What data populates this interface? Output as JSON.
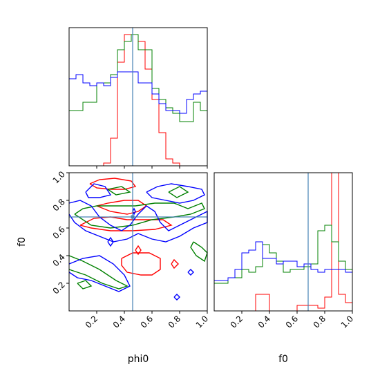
{
  "chart_data": {
    "type": "corner",
    "parameters": [
      "phi0",
      "f0"
    ],
    "truths": {
      "phi0": 0.46,
      "f0": 0.68
    },
    "truth_color": "#4682b4",
    "series_colors": {
      "red": "#ff0000",
      "green": "#008000",
      "blue": "#0000ff"
    },
    "axes": {
      "phi0": {
        "label": "phi0",
        "range": [
          0,
          1
        ],
        "ticks": [
          "0.2",
          "0.4",
          "0.6",
          "0.8",
          "1.0"
        ]
      },
      "f0": {
        "label": "f0",
        "range": [
          0,
          1
        ],
        "ticks": [
          "0.2",
          "0.4",
          "0.6",
          "0.8",
          "1.0"
        ]
      }
    },
    "marginals": {
      "phi0": {
        "bins": 20,
        "red": [
          0,
          0,
          0,
          0,
          0,
          0.02,
          0.2,
          0.75,
          0.95,
          0.95,
          0.9,
          0.7,
          0.48,
          0.24,
          0.05,
          0.02,
          0,
          0,
          0,
          0
        ],
        "green": [
          0.4,
          0.4,
          0.46,
          0.46,
          0.6,
          0.6,
          0.66,
          0.84,
          0.9,
          0.95,
          0.84,
          0.84,
          0.56,
          0.48,
          0.42,
          0.38,
          0.32,
          0.32,
          0.46,
          0.4
        ],
        "blue": [
          0.63,
          0.66,
          0.6,
          0.58,
          0.6,
          0.58,
          0.64,
          0.68,
          0.68,
          0.68,
          0.6,
          0.6,
          0.52,
          0.45,
          0.4,
          0.4,
          0.38,
          0.48,
          0.52,
          0.54
        ]
      },
      "f0": {
        "bins": 20,
        "red": [
          0,
          0,
          0,
          0,
          0,
          0,
          0.12,
          0.12,
          0,
          0,
          0,
          0,
          0.04,
          0.04,
          0.04,
          0.02,
          0.1,
          1.0,
          0.12,
          0.06
        ],
        "green": [
          0.2,
          0.2,
          0.24,
          0.24,
          0.3,
          0.28,
          0.32,
          0.48,
          0.42,
          0.36,
          0.28,
          0.3,
          0.3,
          0.32,
          0.34,
          0.58,
          0.62,
          0.5,
          0.36,
          0.3
        ],
        "blue": [
          0.22,
          0.22,
          0.24,
          0.3,
          0.42,
          0.44,
          0.5,
          0.38,
          0.38,
          0.34,
          0.36,
          0.36,
          0.32,
          0.34,
          0.3,
          0.28,
          0.3,
          0.3,
          0.3,
          0.28
        ]
      }
    },
    "joint_contours": {
      "x": "phi0",
      "y": "f0",
      "red": [
        [
          [
            0.15,
            0.92
          ],
          [
            0.22,
            0.95
          ],
          [
            0.33,
            0.96
          ],
          [
            0.45,
            0.94
          ],
          [
            0.48,
            0.9
          ],
          [
            0.4,
            0.88
          ],
          [
            0.3,
            0.88
          ],
          [
            0.2,
            0.89
          ],
          [
            0.15,
            0.92
          ]
        ],
        [
          [
            0.2,
            0.76
          ],
          [
            0.28,
            0.78
          ],
          [
            0.4,
            0.8
          ],
          [
            0.5,
            0.8
          ],
          [
            0.56,
            0.76
          ],
          [
            0.5,
            0.72
          ],
          [
            0.42,
            0.7
          ],
          [
            0.3,
            0.72
          ],
          [
            0.2,
            0.76
          ]
        ],
        [
          [
            0.08,
            0.62
          ],
          [
            0.18,
            0.67
          ],
          [
            0.3,
            0.68
          ],
          [
            0.42,
            0.66
          ],
          [
            0.56,
            0.66
          ],
          [
            0.68,
            0.66
          ],
          [
            0.74,
            0.62
          ],
          [
            0.62,
            0.59
          ],
          [
            0.46,
            0.58
          ],
          [
            0.3,
            0.58
          ],
          [
            0.16,
            0.6
          ],
          [
            0.08,
            0.62
          ]
        ],
        [
          [
            0.38,
            0.38
          ],
          [
            0.46,
            0.42
          ],
          [
            0.58,
            0.42
          ],
          [
            0.66,
            0.38
          ],
          [
            0.66,
            0.3
          ],
          [
            0.6,
            0.26
          ],
          [
            0.52,
            0.26
          ],
          [
            0.42,
            0.28
          ],
          [
            0.38,
            0.33
          ],
          [
            0.38,
            0.38
          ]
        ],
        [
          [
            0.48,
            0.44
          ],
          [
            0.5,
            0.47
          ],
          [
            0.52,
            0.44
          ],
          [
            0.5,
            0.41
          ],
          [
            0.48,
            0.44
          ]
        ],
        [
          [
            0.74,
            0.34
          ],
          [
            0.76,
            0.37
          ],
          [
            0.79,
            0.34
          ],
          [
            0.76,
            0.31
          ],
          [
            0.74,
            0.34
          ]
        ]
      ],
      "green": [
        [
          [
            0.04,
            0.7
          ],
          [
            0.1,
            0.74
          ],
          [
            0.2,
            0.76
          ],
          [
            0.34,
            0.76
          ],
          [
            0.48,
            0.76
          ],
          [
            0.62,
            0.78
          ],
          [
            0.76,
            0.78
          ],
          [
            0.86,
            0.74
          ],
          [
            0.96,
            0.78
          ],
          [
            0.98,
            0.74
          ],
          [
            0.88,
            0.7
          ],
          [
            0.76,
            0.68
          ],
          [
            0.6,
            0.66
          ],
          [
            0.46,
            0.62
          ],
          [
            0.3,
            0.6
          ],
          [
            0.16,
            0.62
          ],
          [
            0.04,
            0.7
          ]
        ],
        [
          [
            0.0,
            0.4
          ],
          [
            0.1,
            0.36
          ],
          [
            0.22,
            0.3
          ],
          [
            0.34,
            0.22
          ],
          [
            0.42,
            0.18
          ],
          [
            0.36,
            0.16
          ],
          [
            0.24,
            0.2
          ],
          [
            0.12,
            0.26
          ],
          [
            0.0,
            0.3
          ]
        ],
        [
          [
            0.9,
            0.5
          ],
          [
            0.96,
            0.46
          ],
          [
            1.0,
            0.42
          ],
          [
            0.98,
            0.36
          ],
          [
            0.92,
            0.4
          ],
          [
            0.88,
            0.46
          ],
          [
            0.9,
            0.5
          ]
        ],
        [
          [
            0.06,
            0.2
          ],
          [
            0.12,
            0.22
          ],
          [
            0.16,
            0.18
          ],
          [
            0.1,
            0.16
          ],
          [
            0.06,
            0.2
          ]
        ],
        [
          [
            0.72,
            0.86
          ],
          [
            0.8,
            0.9
          ],
          [
            0.86,
            0.86
          ],
          [
            0.78,
            0.82
          ],
          [
            0.72,
            0.86
          ]
        ],
        [
          [
            0.28,
            0.88
          ],
          [
            0.38,
            0.9
          ],
          [
            0.44,
            0.86
          ],
          [
            0.34,
            0.84
          ],
          [
            0.28,
            0.88
          ]
        ]
      ],
      "blue": [
        [
          [
            0.12,
            0.86
          ],
          [
            0.18,
            0.92
          ],
          [
            0.26,
            0.9
          ],
          [
            0.3,
            0.84
          ],
          [
            0.22,
            0.82
          ],
          [
            0.14,
            0.82
          ],
          [
            0.12,
            0.86
          ]
        ],
        [
          [
            0.56,
            0.86
          ],
          [
            0.64,
            0.9
          ],
          [
            0.74,
            0.92
          ],
          [
            0.86,
            0.9
          ],
          [
            0.96,
            0.88
          ],
          [
            0.98,
            0.84
          ],
          [
            0.9,
            0.8
          ],
          [
            0.8,
            0.78
          ],
          [
            0.7,
            0.8
          ],
          [
            0.6,
            0.82
          ],
          [
            0.56,
            0.86
          ]
        ],
        [
          [
            0.0,
            0.78
          ],
          [
            0.08,
            0.8
          ],
          [
            0.16,
            0.76
          ],
          [
            0.22,
            0.68
          ],
          [
            0.3,
            0.62
          ],
          [
            0.38,
            0.58
          ],
          [
            0.44,
            0.62
          ],
          [
            0.5,
            0.7
          ],
          [
            0.56,
            0.76
          ],
          [
            0.62,
            0.72
          ],
          [
            0.66,
            0.64
          ],
          [
            0.72,
            0.58
          ],
          [
            0.8,
            0.62
          ],
          [
            0.88,
            0.66
          ],
          [
            0.96,
            0.7
          ],
          [
            1.0,
            0.72
          ],
          [
            1.0,
            0.64
          ],
          [
            0.9,
            0.6
          ],
          [
            0.8,
            0.54
          ],
          [
            0.7,
            0.5
          ],
          [
            0.6,
            0.52
          ],
          [
            0.5,
            0.56
          ],
          [
            0.42,
            0.52
          ],
          [
            0.32,
            0.5
          ],
          [
            0.22,
            0.54
          ],
          [
            0.12,
            0.58
          ],
          [
            0.04,
            0.64
          ],
          [
            0.0,
            0.7
          ]
        ],
        [
          [
            0.0,
            0.34
          ],
          [
            0.1,
            0.38
          ],
          [
            0.22,
            0.4
          ],
          [
            0.32,
            0.34
          ],
          [
            0.4,
            0.26
          ],
          [
            0.44,
            0.18
          ],
          [
            0.36,
            0.14
          ],
          [
            0.26,
            0.18
          ],
          [
            0.16,
            0.22
          ],
          [
            0.06,
            0.24
          ],
          [
            0.0,
            0.28
          ]
        ],
        [
          [
            0.46,
            0.72
          ],
          [
            0.47,
            0.74
          ],
          [
            0.48,
            0.72
          ],
          [
            0.47,
            0.7
          ],
          [
            0.46,
            0.72
          ]
        ],
        [
          [
            0.76,
            0.1
          ],
          [
            0.78,
            0.12
          ],
          [
            0.8,
            0.1
          ],
          [
            0.78,
            0.08
          ],
          [
            0.76,
            0.1
          ]
        ],
        [
          [
            0.86,
            0.28
          ],
          [
            0.88,
            0.3
          ],
          [
            0.9,
            0.28
          ],
          [
            0.88,
            0.26
          ],
          [
            0.86,
            0.28
          ]
        ],
        [
          [
            0.28,
            0.5
          ],
          [
            0.3,
            0.53
          ],
          [
            0.32,
            0.5
          ],
          [
            0.3,
            0.47
          ],
          [
            0.28,
            0.5
          ]
        ]
      ]
    }
  }
}
